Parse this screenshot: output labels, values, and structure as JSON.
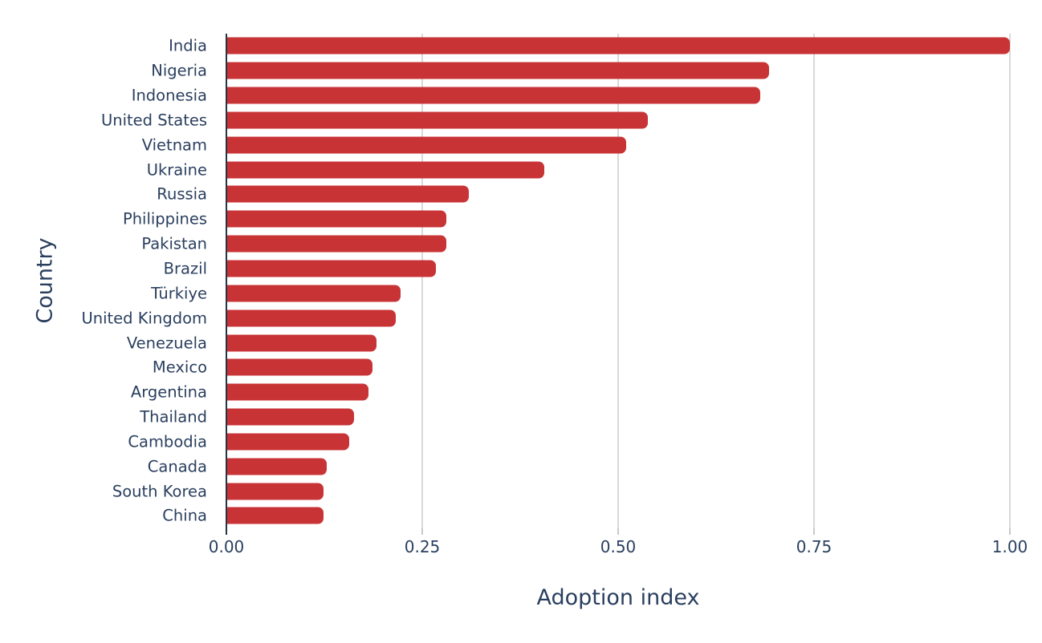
{
  "chart_data": {
    "type": "bar",
    "orientation": "horizontal",
    "title": "",
    "xlabel": "Adoption index",
    "ylabel": "Country",
    "xlim": [
      0,
      1.0
    ],
    "x_ticks": [
      "0.00",
      "0.25",
      "0.50",
      "0.75",
      "1.00"
    ],
    "x_tick_values": [
      0,
      0.25,
      0.5,
      0.75,
      1.0
    ],
    "categories": [
      "India",
      "Nigeria",
      "Indonesia",
      "United States",
      "Vietnam",
      "Ukraine",
      "Russia",
      "Philippines",
      "Pakistan",
      "Brazil",
      "Türkiye",
      "United Kingdom",
      "Venezuela",
      "Mexico",
      "Argentina",
      "Thailand",
      "Cambodia",
      "Canada",
      "South Korea",
      "China"
    ],
    "values": [
      1.0,
      0.693,
      0.681,
      0.538,
      0.51,
      0.406,
      0.309,
      0.281,
      0.281,
      0.267,
      0.222,
      0.216,
      0.192,
      0.186,
      0.181,
      0.163,
      0.157,
      0.128,
      0.124,
      0.124
    ],
    "bar_color": "#c83336",
    "grid": true,
    "grid_color": "#d9d9d9",
    "zero_line_color": "#273444",
    "text_color": "#2a3f5f",
    "legend_position": "none"
  }
}
